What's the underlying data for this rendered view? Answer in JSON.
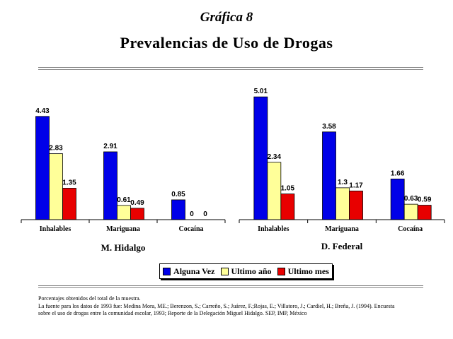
{
  "header": {
    "supertitle": "Gráfica 8",
    "title": "Prevalencias de Uso de Drogas"
  },
  "legend": {
    "items": [
      {
        "label": "Alguna Vez",
        "color": "#0000e8"
      },
      {
        "label": "Ultimo año",
        "color": "#ffff99"
      },
      {
        "label": "Ultimo mes",
        "color": "#e80000"
      }
    ]
  },
  "notes": {
    "line1": "Porcentajes obtenidos del total de la muestra.",
    "line2": "La fuente para los datos de 1993 fue: Medina Mora, ME.; Berenzon, S.; Carreño, S.; Juárez, F.;Rojas, E.; Villatoro, J.; Cardiel, H.; Breña, J. (1994). Encuesta",
    "line3": "sobre el uso de drogas entre la comunidad escolar, 1993; Reporte de la Delegación Miguel Hidalgo. SEP, IMP, México"
  },
  "chart_data": [
    {
      "type": "bar",
      "title": "M. Hidalgo",
      "categories": [
        "Inhalables",
        "Mariguana",
        "Cocaína"
      ],
      "series": [
        {
          "name": "Alguna Vez",
          "values": [
            4.43,
            2.91,
            0.85
          ]
        },
        {
          "name": "Ultimo año",
          "values": [
            2.83,
            0.61,
            0
          ]
        },
        {
          "name": "Ultimo mes",
          "values": [
            1.35,
            0.49,
            0
          ]
        }
      ],
      "legend_position": "bottom"
    },
    {
      "type": "bar",
      "title": "D. Federal",
      "categories": [
        "Inhalables",
        "Mariguana",
        "Cocaína"
      ],
      "series": [
        {
          "name": "Alguna Vez",
          "values": [
            5.01,
            3.58,
            1.66
          ]
        },
        {
          "name": "Ultimo año",
          "values": [
            2.34,
            1.3,
            0.63
          ]
        },
        {
          "name": "Ultimo mes",
          "values": [
            1.05,
            1.17,
            0.59
          ]
        }
      ],
      "legend_position": "bottom"
    }
  ]
}
